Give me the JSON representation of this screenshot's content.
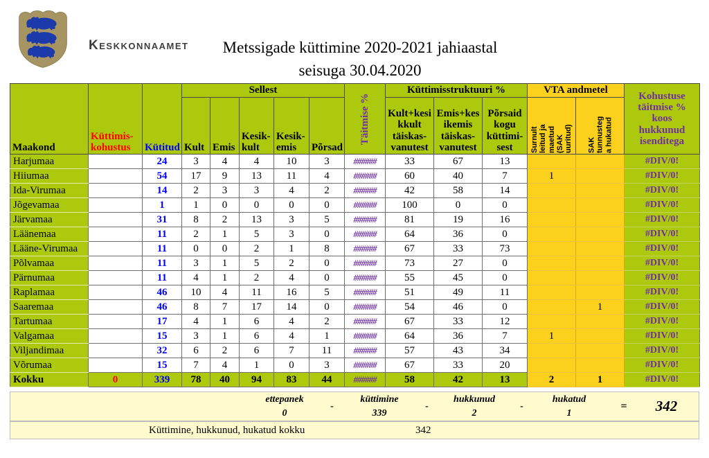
{
  "logo": {
    "org_name": "Keskkonnaamet"
  },
  "title": {
    "line1": "Metssigade küttimine 2020-2021 jahiaastal",
    "line2": "seisuga 30.04.2020"
  },
  "table": {
    "headers": {
      "maakond": "Maakond",
      "kohustus": "Küttimis-\nkohustus",
      "kutitud": "Kütitud",
      "sellest": "Sellest",
      "kult": "Kult",
      "emis": "Emis",
      "kesik_kult": "Kesik-\nkult",
      "kesik_emis": "Kesik-\nemis",
      "porsad": "Põrsad",
      "taitmise": "Täitmise %",
      "struktuur": "Küttimisstruktuuri %",
      "str1": "Kult+kesi\nkkult\ntäiskas-\nvanutest",
      "str2": "Emis+kes\nikemis\ntäiskas-\nvanutest",
      "str3": "Põrsaid\nkogu\nküttimi-\nsest",
      "vta": "VTA andmetel",
      "vta1": "Surnult\nleitud ja\nmaetud\n(SAK\nuuritud)",
      "vta2": "SAK\ntunnusteg\na hukatud",
      "koos": "Kohustuse\ntäitmise %\nkoos\nhukkunud\nisenditega"
    },
    "rows": [
      [
        "Harjumaa",
        "",
        "24",
        "3",
        "4",
        "4",
        "10",
        "3",
        "######",
        "33",
        "67",
        "13",
        "",
        "",
        "#DIV/0!"
      ],
      [
        "Hiiumaa",
        "",
        "54",
        "17",
        "9",
        "13",
        "11",
        "4",
        "######",
        "60",
        "40",
        "7",
        "1",
        "",
        "#DIV/0!"
      ],
      [
        "Ida-Virumaa",
        "",
        "14",
        "2",
        "3",
        "3",
        "4",
        "2",
        "######",
        "42",
        "58",
        "14",
        "",
        "",
        "#DIV/0!"
      ],
      [
        "Jõgevamaa",
        "",
        "1",
        "1",
        "0",
        "0",
        "0",
        "0",
        "######",
        "100",
        "0",
        "0",
        "",
        "",
        "#DIV/0!"
      ],
      [
        "Järvamaa",
        "",
        "31",
        "8",
        "2",
        "13",
        "3",
        "5",
        "######",
        "81",
        "19",
        "16",
        "",
        "",
        "#DIV/0!"
      ],
      [
        "Läänemaa",
        "",
        "11",
        "2",
        "1",
        "5",
        "3",
        "0",
        "######",
        "64",
        "36",
        "0",
        "",
        "",
        "#DIV/0!"
      ],
      [
        "Lääne-Virumaa",
        "",
        "11",
        "0",
        "0",
        "2",
        "1",
        "8",
        "######",
        "67",
        "33",
        "73",
        "",
        "",
        "#DIV/0!"
      ],
      [
        "Põlvamaa",
        "",
        "11",
        "3",
        "1",
        "5",
        "2",
        "0",
        "######",
        "73",
        "27",
        "0",
        "",
        "",
        "#DIV/0!"
      ],
      [
        "Pärnumaa",
        "",
        "11",
        "4",
        "1",
        "2",
        "4",
        "0",
        "######",
        "55",
        "45",
        "0",
        "",
        "",
        "#DIV/0!"
      ],
      [
        "Raplamaa",
        "",
        "46",
        "10",
        "4",
        "11",
        "16",
        "5",
        "######",
        "51",
        "49",
        "11",
        "",
        "",
        "#DIV/0!"
      ],
      [
        "Saaremaa",
        "",
        "46",
        "8",
        "7",
        "17",
        "14",
        "0",
        "######",
        "54",
        "46",
        "0",
        "",
        "1",
        "#DIV/0!"
      ],
      [
        "Tartumaa",
        "",
        "17",
        "4",
        "1",
        "6",
        "4",
        "2",
        "######",
        "67",
        "33",
        "12",
        "",
        "",
        "#DIV/0!"
      ],
      [
        "Valgamaa",
        "",
        "15",
        "3",
        "1",
        "6",
        "4",
        "1",
        "######",
        "64",
        "36",
        "7",
        "1",
        "",
        "#DIV/0!"
      ],
      [
        "Viljandimaa",
        "",
        "32",
        "6",
        "2",
        "6",
        "7",
        "11",
        "######",
        "57",
        "43",
        "34",
        "",
        "",
        "#DIV/0!"
      ],
      [
        "Võrumaa",
        "",
        "15",
        "7",
        "4",
        "1",
        "0",
        "3",
        "######",
        "67",
        "33",
        "20",
        "",
        "",
        "#DIV/0!"
      ]
    ],
    "total_row": [
      "Kokku",
      "0",
      "339",
      "78",
      "40",
      "94",
      "83",
      "44",
      "######",
      "58",
      "42",
      "13",
      "2",
      "1",
      "#DIV/0!"
    ]
  },
  "summary": {
    "formula": {
      "terms": [
        {
          "label": "ettepanek",
          "value": "0"
        },
        {
          "label": "küttimine",
          "value": "339"
        },
        {
          "label": "hukkunud",
          "value": "2"
        },
        {
          "label": "hukatud",
          "value": "1"
        }
      ],
      "operator": "-",
      "equals": "=",
      "result": "342"
    },
    "total_line": {
      "label": "Küttimine, hukkunud, hukatud kokku",
      "value": "342"
    }
  }
}
